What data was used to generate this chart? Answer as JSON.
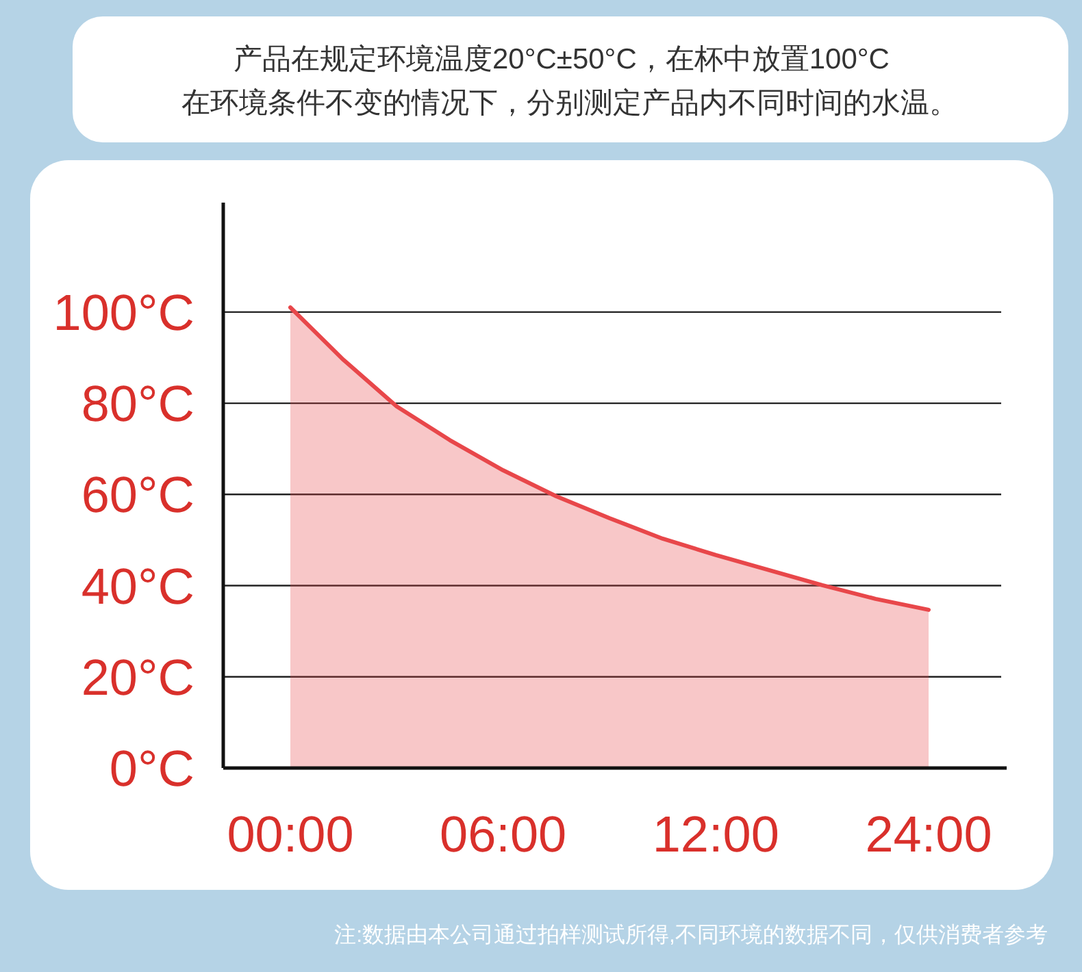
{
  "chart_data": {
    "type": "area",
    "title": "产品在规定环境温度20°C±50°C，在杯中放置100°C",
    "subtitle": "在环境条件不变的情况下，分别测定产品内不同时间的水温。",
    "categories": [
      "00:00",
      null,
      null,
      null,
      "06:00",
      null,
      null,
      null,
      "12:00",
      null,
      null,
      null,
      "24:00"
    ],
    "series": [
      {
        "color": "#e8474a",
        "values": [
          101,
          89.5,
          79.3,
          71.9,
          65.3,
          59.6,
          54.8,
          50.3,
          46.7,
          43.4,
          40.1,
          37.1,
          34.7
        ]
      }
    ],
    "ylim": [
      0,
      124
    ],
    "yticks": [
      {
        "value": 0,
        "label": "0°C"
      },
      {
        "value": 20,
        "label": "20°C"
      },
      {
        "value": 40,
        "label": "40°C"
      },
      {
        "value": 60,
        "label": "60°C"
      },
      {
        "value": 80,
        "label": "80°C"
      },
      {
        "value": 100,
        "label": "100°C"
      }
    ],
    "grid": "y",
    "annotations": [
      "注:数据由本公司通过拍样测试所得,不同环境的数据不同，仅供消费者参考"
    ]
  }
}
